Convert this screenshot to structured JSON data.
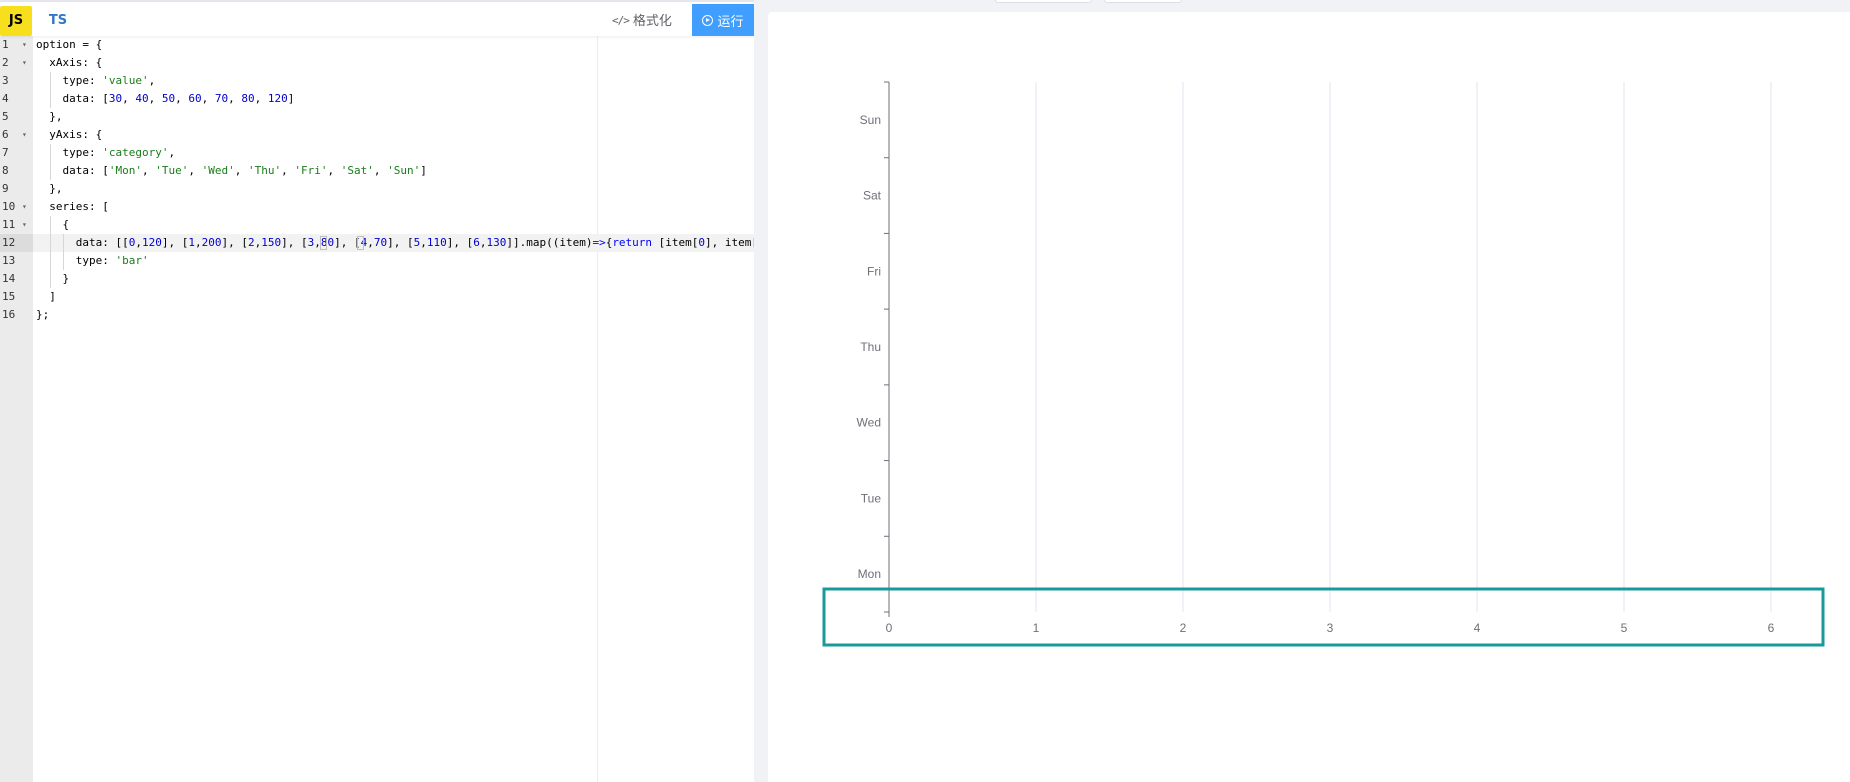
{
  "editor": {
    "tab_js": "JS",
    "tab_ts": "TS",
    "format_icon": "</>",
    "format_label": "格式化",
    "run_label": "运行",
    "run_icon_name": "play-circle-icon",
    "line_numbers": [
      "1",
      "2",
      "3",
      "4",
      "5",
      "6",
      "7",
      "8",
      "9",
      "10",
      "11",
      "12",
      "13",
      "14",
      "15",
      "16"
    ],
    "code_lines": [
      "option = {",
      "  xAxis: {",
      "    type: 'value',",
      "    data: [30, 40, 50, 60, 70, 80, 120]",
      "  },",
      "  yAxis: {",
      "    type: 'category',",
      "    data: ['Mon', 'Tue', 'Wed', 'Thu', 'Fri', 'Sat', 'Sun']",
      "  },",
      "  series: [",
      "    {",
      "      data: [[0,120], [1,200], [2,150], [3,80], [4,70], [5,110], [6,130]].map((item)=>{return [item[0], item[",
      "      type: 'bar'",
      "    }",
      "  ]",
      "};"
    ]
  },
  "chart_data": {
    "type": "bar",
    "orientation": "horizontal",
    "title": "",
    "xlabel": "",
    "ylabel": "",
    "x_ticks": [
      "0",
      "1",
      "2",
      "3",
      "4",
      "5",
      "6"
    ],
    "xlim": [
      0,
      6
    ],
    "categories": [
      "Mon",
      "Tue",
      "Wed",
      "Thu",
      "Fri",
      "Sat",
      "Sun"
    ],
    "series": [],
    "grid": true,
    "highlight_color": "#179a98",
    "axis_color": "#6e7079",
    "grid_color": "#e0e6f1"
  }
}
